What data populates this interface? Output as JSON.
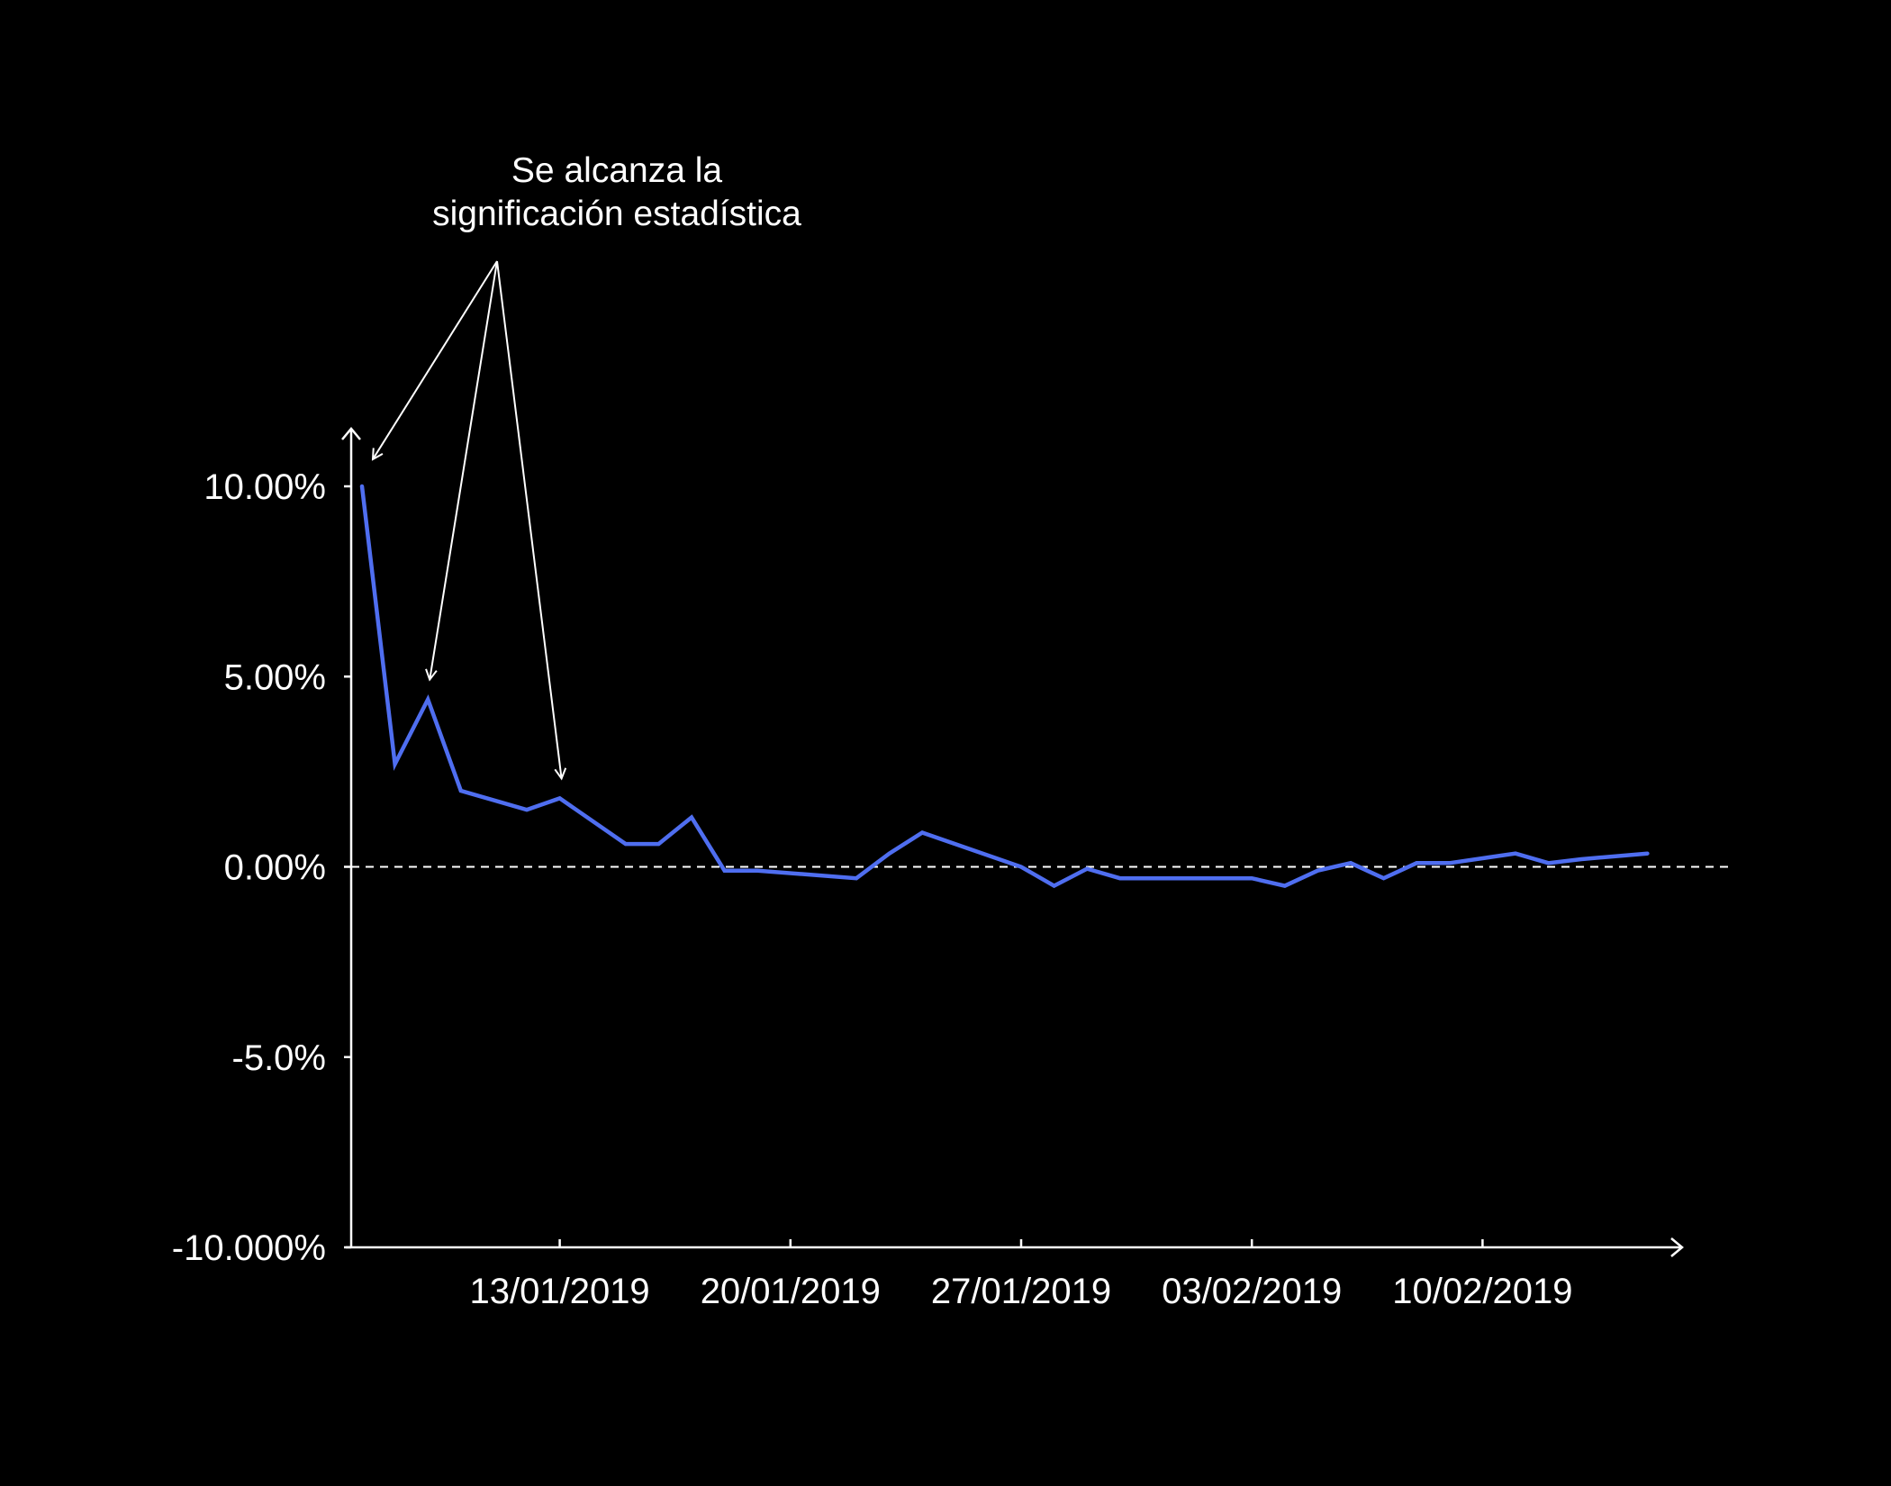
{
  "chart_data": {
    "type": "line",
    "title": "",
    "xlabel": "",
    "ylabel": "",
    "x_tick_labels": [
      "13/01/2019",
      "20/01/2019",
      "27/01/2019",
      "03/02/2019",
      "10/02/2019"
    ],
    "y_tick_labels": [
      "10.00%",
      "5.00%",
      "0.00%",
      "-5.0%",
      "-10.000%"
    ],
    "y_ticks": [
      10,
      5,
      0,
      -5,
      -10
    ],
    "ylim": [
      -10,
      10
    ],
    "xlim": [
      "2019-01-07",
      "2019-02-19"
    ],
    "zero_reference_line": "dashed",
    "grid": false,
    "line_color": "#4f6ef0",
    "annotation": {
      "text_line_1": "Se alcanza la",
      "text_line_2": "significación estadística",
      "targets": [
        "2019-01-07",
        "2019-01-09",
        "2019-01-13"
      ]
    },
    "series": [
      {
        "x": [
          "2019-01-07",
          "2019-01-08",
          "2019-01-09",
          "2019-01-10",
          "2019-01-12",
          "2019-01-13",
          "2019-01-15",
          "2019-01-16",
          "2019-01-17",
          "2019-01-18",
          "2019-01-19",
          "2019-01-22",
          "2019-01-23",
          "2019-01-24",
          "2019-01-27",
          "2019-01-28",
          "2019-01-29",
          "2019-01-30",
          "2019-01-31",
          "2019-02-02",
          "2019-02-03",
          "2019-02-04",
          "2019-02-05",
          "2019-02-06",
          "2019-02-07",
          "2019-02-08",
          "2019-02-09",
          "2019-02-11",
          "2019-02-12",
          "2019-02-13",
          "2019-02-15"
        ],
        "values": [
          10.0,
          2.7,
          4.4,
          2.0,
          1.5,
          1.8,
          0.6,
          0.6,
          1.3,
          -0.1,
          -0.1,
          -0.3,
          0.35,
          0.9,
          0.0,
          -0.5,
          -0.05,
          -0.3,
          -0.3,
          -0.3,
          -0.3,
          -0.5,
          -0.1,
          0.1,
          -0.3,
          0.1,
          0.1,
          0.35,
          0.1,
          0.2,
          0.35
        ]
      }
    ]
  }
}
